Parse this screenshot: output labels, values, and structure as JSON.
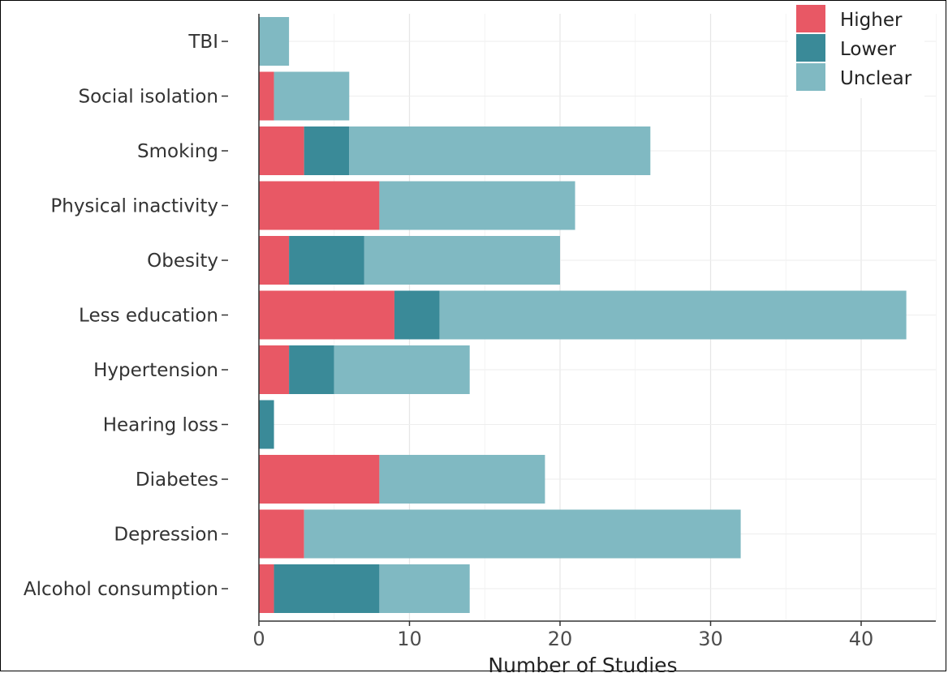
{
  "chart_data": {
    "type": "bar",
    "orientation": "horizontal",
    "stacked": true,
    "categories": [
      "TBI",
      "Social isolation",
      "Smoking",
      "Physical inactivity",
      "Obesity",
      "Less education",
      "Hypertension",
      "Hearing loss",
      "Diabetes",
      "Depression",
      "Alcohol consumption"
    ],
    "series": [
      {
        "name": "Higher",
        "color": "#e85865",
        "values": [
          0,
          1,
          3,
          8,
          2,
          9,
          2,
          0,
          8,
          3,
          1
        ]
      },
      {
        "name": "Lower",
        "color": "#3a8a98",
        "values": [
          0,
          0,
          3,
          0,
          5,
          3,
          3,
          1,
          0,
          0,
          7
        ]
      },
      {
        "name": "Unclear",
        "color": "#80b9c2",
        "values": [
          2,
          5,
          20,
          13,
          13,
          31,
          9,
          0,
          11,
          29,
          6
        ]
      }
    ],
    "xlabel": "Number of Studies",
    "ylabel": "",
    "xlim": [
      0,
      44.5
    ],
    "xticks": [
      "0",
      "10",
      "20",
      "30",
      "40"
    ],
    "grid": true,
    "legend_position": "top-right"
  }
}
